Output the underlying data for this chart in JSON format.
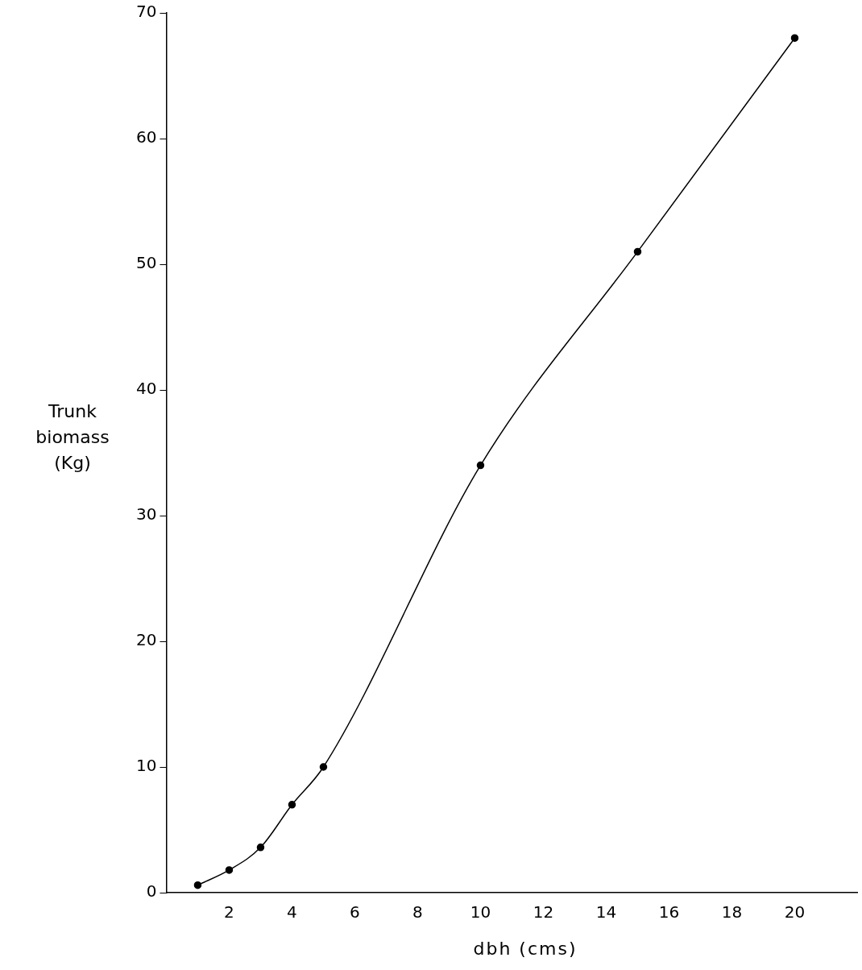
{
  "chart_data": {
    "type": "line",
    "xlabel": "dbh (cms)",
    "ylabel": "Trunk biomass (Kg)",
    "x": [
      1,
      2,
      3,
      4,
      5,
      10,
      15,
      20
    ],
    "values": [
      0.6,
      1.8,
      3.6,
      7,
      10,
      34,
      51,
      68
    ],
    "color": "#000000",
    "marker": "circle",
    "line_style": "solid",
    "xlim": [
      0,
      22
    ],
    "xticks": [
      2,
      4,
      6,
      8,
      10,
      12,
      14,
      16,
      18,
      20
    ],
    "ylim": [
      0,
      70
    ],
    "yticks": [
      0,
      10,
      20,
      30,
      40,
      50,
      60,
      70
    ]
  }
}
